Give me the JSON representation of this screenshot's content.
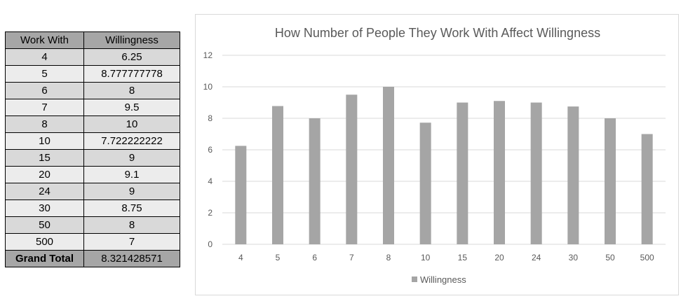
{
  "table": {
    "header": [
      "Work With",
      "Willingness"
    ],
    "rows": [
      [
        "4",
        "6.25"
      ],
      [
        "5",
        "8.777777778"
      ],
      [
        "6",
        "8"
      ],
      [
        "7",
        "9.5"
      ],
      [
        "8",
        "10"
      ],
      [
        "10",
        "7.722222222"
      ],
      [
        "15",
        "9"
      ],
      [
        "20",
        "9.1"
      ],
      [
        "24",
        "9"
      ],
      [
        "30",
        "8.75"
      ],
      [
        "50",
        "8"
      ],
      [
        "500",
        "7"
      ]
    ],
    "total_label": "Grand Total",
    "total_value": "8.321428571"
  },
  "chart_data": {
    "type": "bar",
    "title": "How Number of People They Work With Affect Willingness",
    "xlabel": "",
    "ylabel": "",
    "categories": [
      "4",
      "5",
      "6",
      "7",
      "8",
      "10",
      "15",
      "20",
      "24",
      "30",
      "50",
      "500"
    ],
    "series": [
      {
        "name": "Willingness",
        "values": [
          6.25,
          8.777777778,
          8,
          9.5,
          10,
          7.722222222,
          9,
          9.1,
          9,
          8.75,
          8,
          7
        ]
      }
    ],
    "ylim": [
      0,
      12
    ],
    "yticks": [
      0,
      2,
      4,
      6,
      8,
      10,
      12
    ],
    "grid": true,
    "legend_position": "bottom",
    "colors": {
      "bar": "#a5a5a5",
      "grid": "#d9d9d9",
      "text": "#595959"
    }
  }
}
